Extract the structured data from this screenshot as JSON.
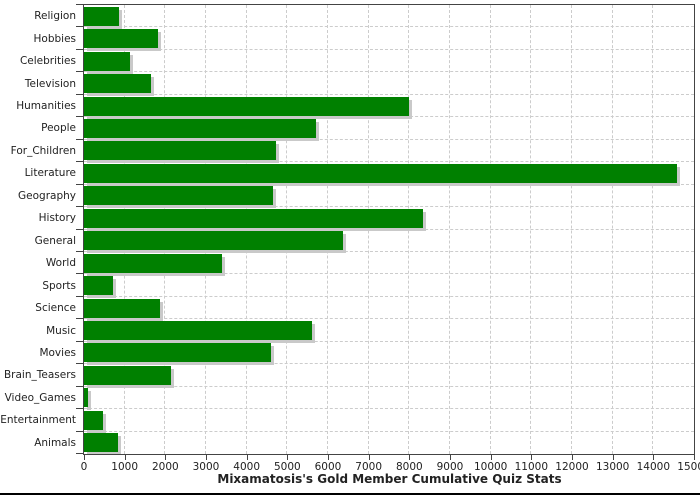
{
  "chart_data": {
    "type": "bar",
    "orientation": "horizontal",
    "title": "Mixamatosis's Gold Member Cumulative Quiz Stats",
    "categories": [
      "Religion",
      "Hobbies",
      "Celebrities",
      "Television",
      "Humanities",
      "People",
      "For_Children",
      "Literature",
      "Geography",
      "History",
      "General",
      "World",
      "Sports",
      "Science",
      "Music",
      "Movies",
      "Brain_Teasers",
      "Video_Games",
      "Entertainment",
      "Animals"
    ],
    "values": [
      850,
      1820,
      1120,
      1650,
      8000,
      5700,
      4715,
      14580,
      4640,
      8330,
      6360,
      3390,
      715,
      1870,
      5610,
      4590,
      2150,
      100,
      460,
      840
    ],
    "xlim": [
      0,
      15000
    ],
    "x_ticks": [
      0,
      1000,
      2000,
      3000,
      4000,
      5000,
      6000,
      7000,
      8000,
      9000,
      10000,
      11000,
      12000,
      13000,
      14000,
      15000
    ],
    "x_tick_labels": [
      "0",
      "1000",
      "2000",
      "3000",
      "4000",
      "5000",
      "6000",
      "7000",
      "8000",
      "9000",
      "10000",
      "11000",
      "12000",
      "13000",
      "14000",
      "15000"
    ],
    "grid": true,
    "legend": "none",
    "colors": {
      "bar": "#008000",
      "bar_shadow": "#c9c9c9",
      "grid": "#cccccc",
      "axis": "#444444",
      "text": "#222222"
    }
  }
}
